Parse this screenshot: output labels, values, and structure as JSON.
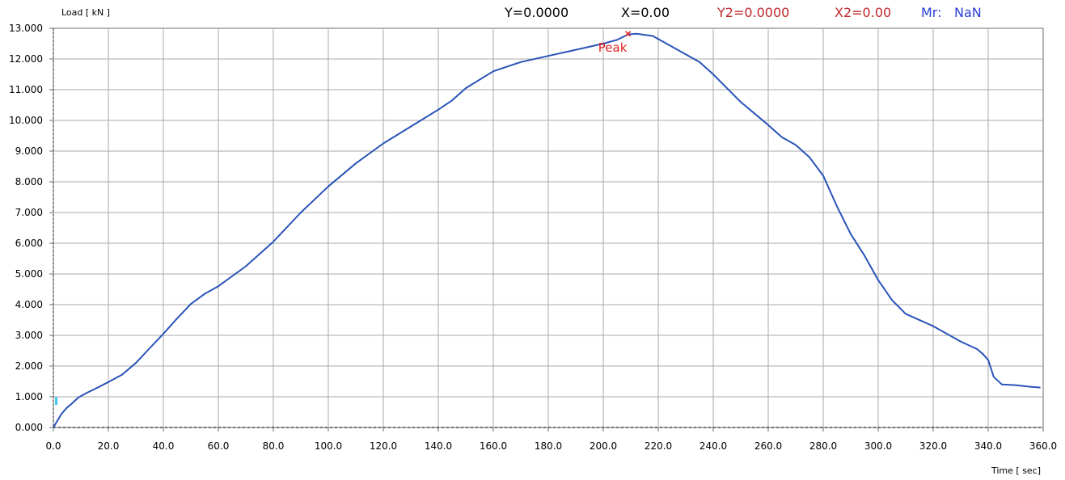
{
  "header": {
    "y": "Y=0.0000",
    "x": "X=0.00",
    "y2": "Y2=0.0000",
    "x2": "X2=0.00",
    "mr_label": "Mr:",
    "mr_value": "NaN"
  },
  "colors": {
    "series": "#2a54b8",
    "peak": "#e02020",
    "header_black": "#000000",
    "header_red": "#c0282d",
    "header_blue": "#2a3fd8",
    "grid": "#a8a8a8",
    "start_marker": "#40c8f0"
  },
  "chart_data": {
    "type": "line",
    "xlabel": "Time [ sec]",
    "ylabel": "Load [ kN ]",
    "xlim": [
      0,
      360
    ],
    "ylim": [
      0,
      13
    ],
    "grid": true,
    "x_ticks": [
      "0.0",
      "20.0",
      "40.0",
      "60.0",
      "80.0",
      "100.0",
      "120.0",
      "140.0",
      "160.0",
      "180.0",
      "200.0",
      "220.0",
      "240.0",
      "260.0",
      "280.0",
      "300.0",
      "320.0",
      "340.0",
      "360.0"
    ],
    "y_ticks": [
      "0.000",
      "1.000",
      "2.000",
      "3.000",
      "4.000",
      "5.000",
      "6.000",
      "7.000",
      "8.000",
      "9.000",
      "10.000",
      "11.000",
      "12.000",
      "13.000"
    ],
    "annotations": [
      {
        "label": "Peak",
        "x": 209,
        "y": 12.82
      }
    ],
    "series": [
      {
        "x": [
          0,
          1,
          2,
          3,
          5,
          7,
          9,
          12,
          15,
          20,
          25,
          30,
          35,
          40,
          45,
          50,
          55,
          60,
          70,
          80,
          90,
          100,
          110,
          120,
          130,
          140,
          145,
          150,
          160,
          170,
          180,
          190,
          200,
          205,
          209,
          212,
          218,
          225,
          235,
          240,
          250,
          260,
          265,
          270,
          275,
          280,
          285,
          290,
          295,
          300,
          305,
          310,
          320,
          330,
          336,
          338,
          340,
          342,
          345,
          350,
          355,
          359
        ],
        "y": [
          0.0,
          0.15,
          0.3,
          0.45,
          0.65,
          0.8,
          0.97,
          1.12,
          1.25,
          1.48,
          1.72,
          2.1,
          2.58,
          3.05,
          3.55,
          4.02,
          4.35,
          4.6,
          5.25,
          6.05,
          7.0,
          7.85,
          8.6,
          9.25,
          9.8,
          10.35,
          10.65,
          11.05,
          11.6,
          11.9,
          12.1,
          12.3,
          12.5,
          12.62,
          12.8,
          12.82,
          12.75,
          12.4,
          11.9,
          11.5,
          10.6,
          9.85,
          9.45,
          9.2,
          8.8,
          8.2,
          7.2,
          6.3,
          5.6,
          4.8,
          4.15,
          3.7,
          3.3,
          2.8,
          2.55,
          2.4,
          2.2,
          1.65,
          1.4,
          1.38,
          1.33,
          1.3
        ]
      }
    ]
  }
}
